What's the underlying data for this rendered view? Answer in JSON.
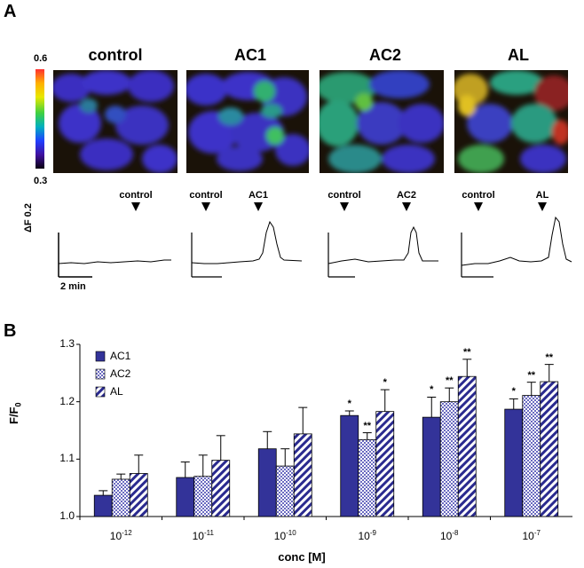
{
  "panel_a": {
    "letter": "A",
    "colorbar": {
      "max_label": "0.6",
      "min_label": "0.3"
    },
    "images": [
      {
        "title": "control"
      },
      {
        "title": "AC1"
      },
      {
        "title": "AC2"
      },
      {
        "title": "AL"
      }
    ],
    "traces": [
      {
        "arrows": [
          "control"
        ]
      },
      {
        "arrows": [
          "control",
          "AC1"
        ]
      },
      {
        "arrows": [
          "control",
          "AC2"
        ]
      },
      {
        "arrows": [
          "control",
          "AL"
        ]
      }
    ],
    "scale_bar": {
      "y_label": "ΔF 0.2",
      "x_label": "2 min"
    }
  },
  "panel_b": {
    "letter": "B",
    "chart_data": {
      "type": "bar",
      "categories": [
        "10^-12",
        "10^-11",
        "10^-10",
        "10^-9",
        "10^-8",
        "10^-7"
      ],
      "category_base": "10",
      "category_exponents": [
        "-12",
        "-11",
        "-10",
        "-9",
        "-8",
        "-7"
      ],
      "series": [
        {
          "name": "AC1",
          "values": [
            1.037,
            1.068,
            1.118,
            1.176,
            1.173,
            1.187
          ],
          "errors": [
            0.008,
            0.027,
            0.03,
            0.008,
            0.035,
            0.018
          ],
          "stars": [
            "",
            "",
            "",
            "*",
            "*",
            "*"
          ]
        },
        {
          "name": "AC2",
          "values": [
            1.065,
            1.07,
            1.088,
            1.134,
            1.2,
            1.211
          ],
          "errors": [
            0.009,
            0.037,
            0.03,
            0.012,
            0.024,
            0.023
          ],
          "stars": [
            "",
            "",
            "",
            "**",
            "**",
            "**"
          ]
        },
        {
          "name": "AL",
          "values": [
            1.075,
            1.098,
            1.144,
            1.183,
            1.244,
            1.235
          ],
          "errors": [
            0.032,
            0.043,
            0.046,
            0.038,
            0.03,
            0.03
          ],
          "stars": [
            "",
            "",
            "",
            "*",
            "**",
            "**"
          ]
        }
      ],
      "ylabel": "F/F0",
      "xlabel": "conc [M]",
      "ylim": [
        1.0,
        1.3
      ],
      "yticks": [
        "1.0",
        "1.1",
        "1.2",
        "1.3"
      ],
      "legend_position": "top-left",
      "colors": {
        "AC1": "#333399",
        "AC2": "#8c8cd0",
        "AL": "#2a2a8f"
      }
    }
  }
}
